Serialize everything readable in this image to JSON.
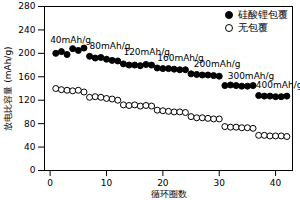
{
  "chart_data": {
    "type": "scatter",
    "x_label": "循环圈数",
    "y_label": "放电比容量 (mAh/g)",
    "x": [
      1,
      2,
      3,
      4,
      5,
      6,
      7,
      8,
      9,
      10,
      11,
      12,
      13,
      14,
      15,
      16,
      17,
      18,
      19,
      20,
      21,
      22,
      23,
      24,
      25,
      26,
      27,
      28,
      29,
      30,
      31,
      32,
      33,
      34,
      35,
      36,
      37,
      38,
      39,
      40,
      41,
      42
    ],
    "series": [
      {
        "name": "硅酸锂包覆",
        "color": "#000000",
        "marker": "circle",
        "values": [
          200,
          203,
          198,
          208,
          205,
          209,
          195,
          192,
          193,
          190,
          188,
          187,
          182,
          180,
          180,
          179,
          181,
          180,
          175,
          174,
          174,
          173,
          172,
          172,
          165,
          164,
          163,
          163,
          162,
          161,
          145,
          146,
          145,
          144,
          144,
          145,
          128,
          127,
          127,
          126,
          126,
          127
        ]
      },
      {
        "name": "无包覆",
        "color": "#000000",
        "marker": "circle-open",
        "values": [
          140,
          138,
          137,
          136,
          137,
          134,
          125,
          126,
          125,
          123,
          122,
          120,
          112,
          111,
          112,
          110,
          111,
          110,
          103,
          102,
          101,
          100,
          100,
          99,
          92,
          90,
          90,
          89,
          88,
          88,
          75,
          74,
          74,
          73,
          73,
          72,
          60,
          60,
          59,
          59,
          59,
          58
        ]
      }
    ],
    "annotations": [
      {
        "text": "40mAh/g",
        "x": 0,
        "y": 222
      },
      {
        "text": "80mAh/g",
        "x": 7,
        "y": 212
      },
      {
        "text": "120mAh/g",
        "x": 13,
        "y": 202
      },
      {
        "text": "160mAh/g",
        "x": 19,
        "y": 192
      },
      {
        "text": "200mAh/g",
        "x": 25.5,
        "y": 182
      },
      {
        "text": "300mAh/g",
        "x": 31.5,
        "y": 162
      },
      {
        "text": "400mAh/g",
        "x": 36.5,
        "y": 145
      }
    ],
    "xlim": [
      -1,
      43
    ],
    "xticks": [
      0,
      10,
      20,
      30,
      40
    ],
    "ylim": [
      0,
      280
    ],
    "yticks": [
      0,
      40,
      80,
      120,
      160,
      200,
      240,
      280
    ],
    "legend": "upper right",
    "grid": false
  }
}
